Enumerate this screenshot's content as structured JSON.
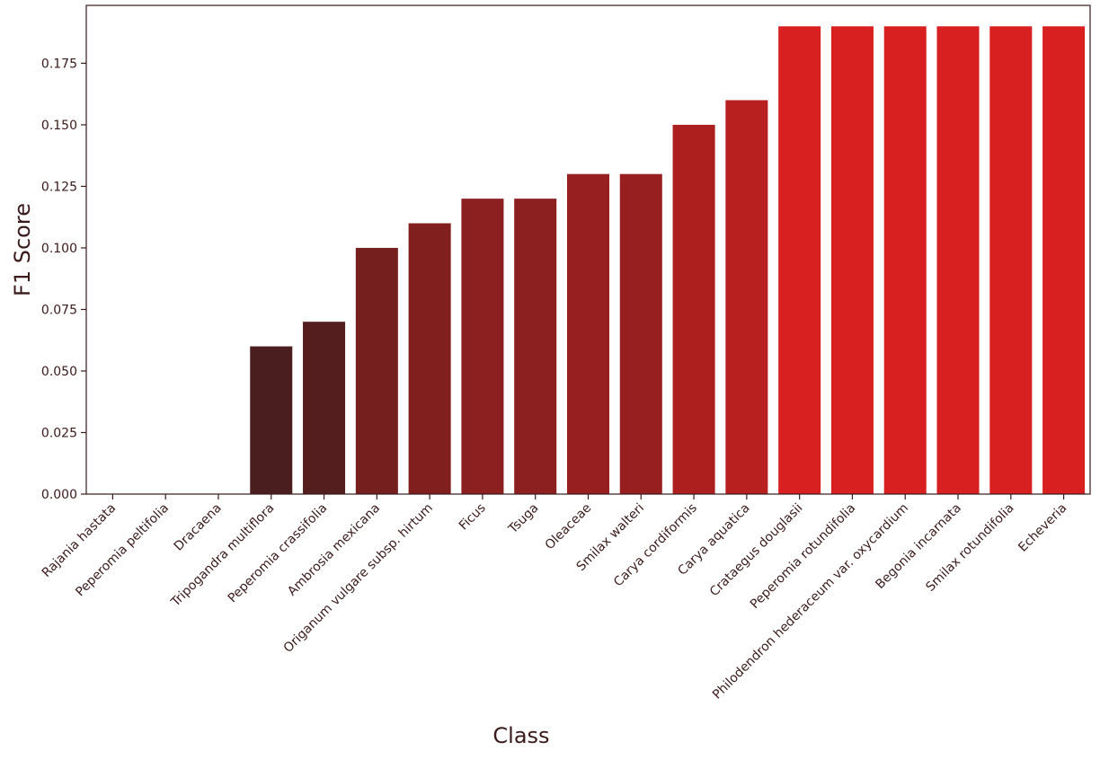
{
  "chart_data": {
    "type": "bar",
    "xlabel": "Class",
    "ylabel": "F1 Score",
    "ylim": [
      0,
      0.1985
    ],
    "yticks": [
      "0.000",
      "0.025",
      "0.050",
      "0.075",
      "0.100",
      "0.125",
      "0.150",
      "0.175"
    ],
    "grid": false,
    "legend": "none",
    "categories": [
      "Rajania hastata",
      "Peperomia peltifolia",
      "Dracaena",
      "Tripogandra multiflora",
      "Peperomia crassifolia",
      "Ambrosia mexicana",
      "Origanum vulgare subsp. hirtum",
      "Ficus",
      "Tsuga",
      "Oleaceae",
      "Smilax walteri",
      "Carya cordiformis",
      "Carya aquatica",
      "Crataegus douglasii",
      "Peperomia rotundifolia",
      "Philodendron hederaceum var. oxycardium",
      "Begonia incarnata",
      "Smilax rotundifolia",
      "Echeveria"
    ],
    "values": [
      0.0,
      0.0,
      0.0,
      0.06,
      0.07,
      0.1,
      0.11,
      0.12,
      0.12,
      0.13,
      0.13,
      0.15,
      0.16,
      0.19,
      0.19,
      0.19,
      0.19,
      0.19,
      0.19
    ],
    "colors": {
      "bar_dark": "#4a1e1e",
      "bar_light": "#d92020",
      "axis": "#3a1a1a",
      "text": "#3a1a1a"
    }
  }
}
